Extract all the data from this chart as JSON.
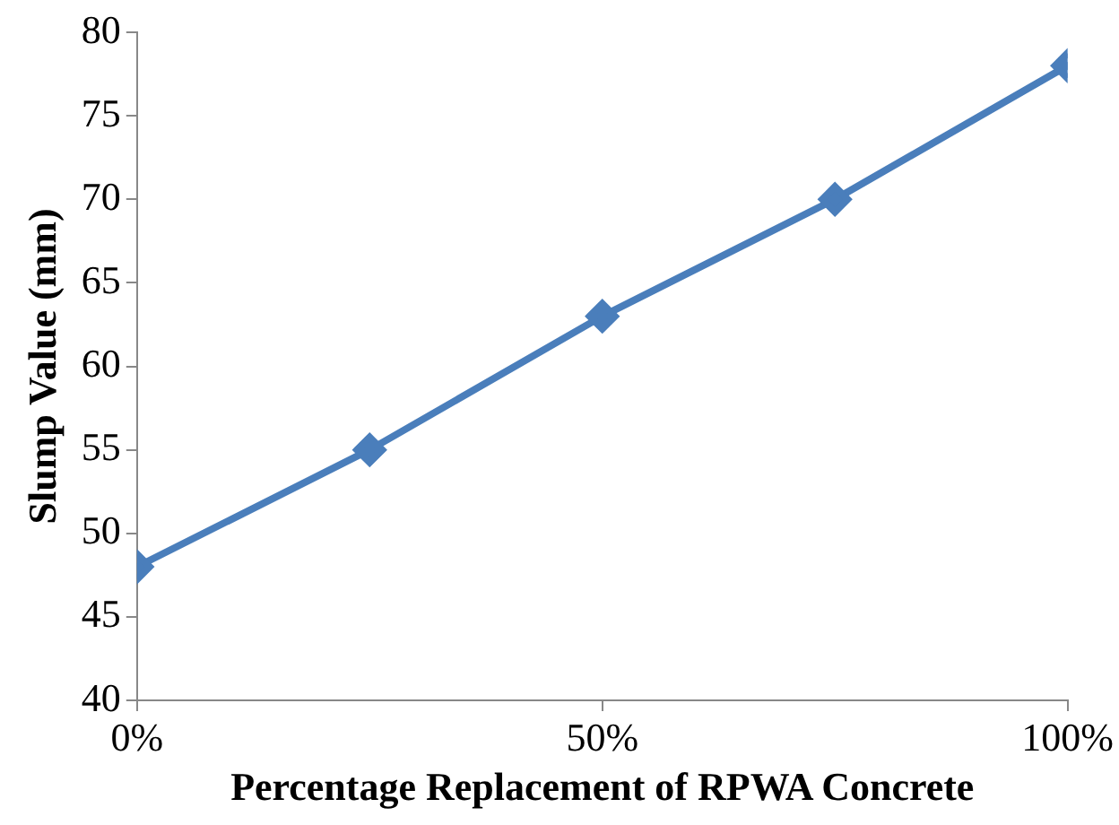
{
  "chart_data": {
    "type": "line",
    "xlabel": "Percentage Replacement of RPWA Concrete",
    "ylabel": "Slump Value (mm)",
    "x": [
      0,
      25,
      50,
      75,
      100
    ],
    "series": [
      {
        "color": "#4a7ebb",
        "values": [
          48,
          55,
          63,
          70,
          78
        ]
      }
    ],
    "xlim": [
      0,
      100
    ],
    "xticks": [
      {
        "value": 0,
        "label": "0%"
      },
      {
        "value": 50,
        "label": "50%"
      },
      {
        "value": 100,
        "label": "100%"
      }
    ],
    "ylim": [
      40,
      80
    ],
    "yticks": [
      40,
      45,
      50,
      55,
      60,
      65,
      70,
      75,
      80
    ],
    "grid": false,
    "legend": false,
    "marker": "diamond",
    "line_style": "solid"
  }
}
